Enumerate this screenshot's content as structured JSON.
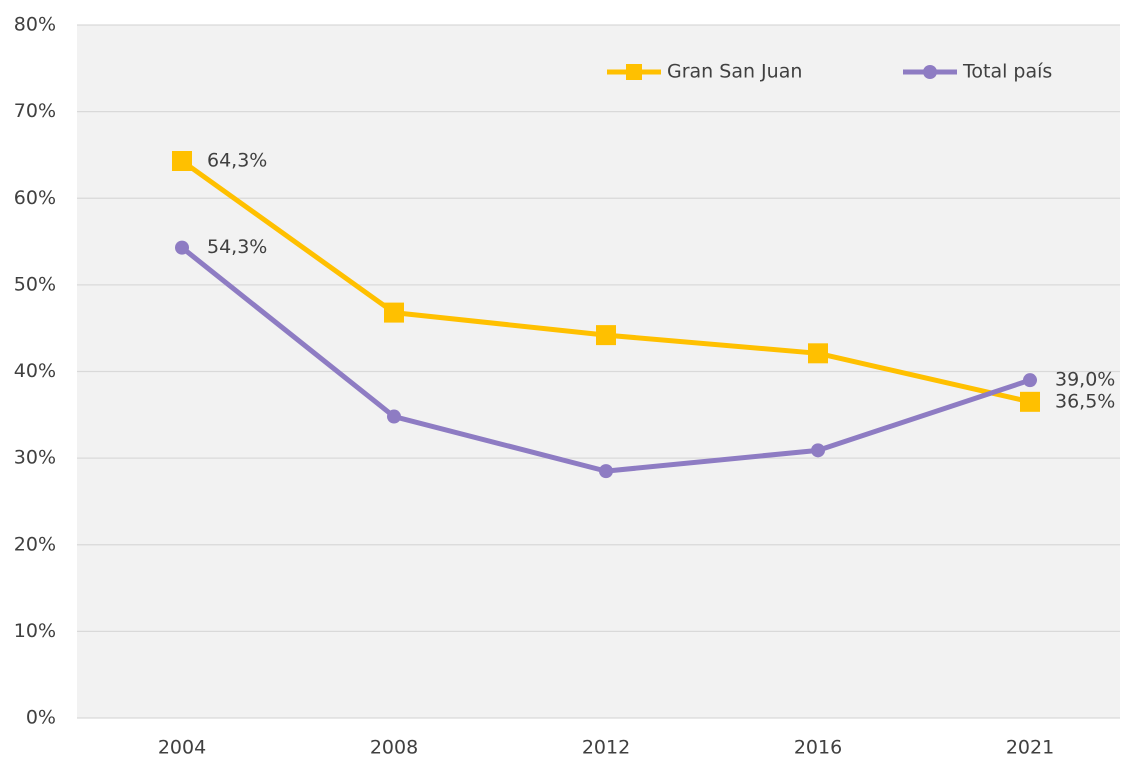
{
  "chart_data": {
    "type": "line",
    "categories": [
      "2004",
      "2008",
      "2012",
      "2016",
      "2021"
    ],
    "series": [
      {
        "name": "Gran San Juan",
        "color": "#ffc000",
        "marker": "square",
        "values": [
          64.3,
          46.8,
          44.2,
          42.1,
          36.5
        ],
        "value_labels": [
          "64,3%",
          null,
          null,
          null,
          "36,5%"
        ]
      },
      {
        "name": "Total país",
        "color": "#8e7cc3",
        "marker": "circle",
        "values": [
          54.3,
          34.8,
          28.5,
          30.9,
          39.0
        ],
        "value_labels": [
          "54,3%",
          null,
          null,
          null,
          "39,0%"
        ]
      }
    ],
    "ylim": [
      0,
      80
    ],
    "yticks": [
      {
        "value": 0,
        "label": "0%"
      },
      {
        "value": 10,
        "label": "10%"
      },
      {
        "value": 20,
        "label": "20%"
      },
      {
        "value": 30,
        "label": "30%"
      },
      {
        "value": 40,
        "label": "40%"
      },
      {
        "value": 50,
        "label": "50%"
      },
      {
        "value": 60,
        "label": "60%"
      },
      {
        "value": 70,
        "label": "70%"
      },
      {
        "value": 80,
        "label": "80%"
      }
    ],
    "grid": true
  }
}
